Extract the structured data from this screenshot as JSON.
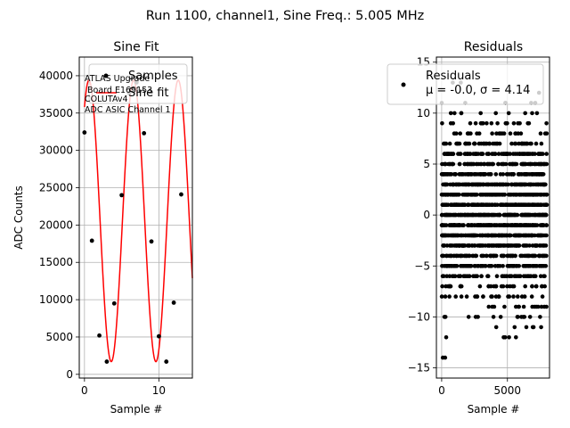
{
  "figure": {
    "suptitle": "Run 1100, channel1, Sine Freq.: 5.005 MHz"
  },
  "chart_data": [
    {
      "type": "scatter",
      "title": "Sine Fit",
      "xlabel": "Sample #",
      "ylabel": "ADC Counts",
      "xlim": [
        -0.7,
        14.5
      ],
      "ylim": [
        -500,
        42500
      ],
      "xticks": [
        0,
        10
      ],
      "xtick_labels": [
        "0",
        "10"
      ],
      "yticks": [
        0,
        5000,
        10000,
        15000,
        20000,
        25000,
        30000,
        35000,
        40000
      ],
      "ytick_labels": [
        "0",
        "5000",
        "10000",
        "15000",
        "20000",
        "25000",
        "30000",
        "35000",
        "40000"
      ],
      "grid": true,
      "legend_position": "top-right",
      "annotation_lines": [
        "ATLAS Upgrade",
        "Board E169153",
        "COLUTAv4",
        "ADC ASIC Channel 1"
      ],
      "series": [
        {
          "name": "Samples",
          "kind": "scatter",
          "color": "#000000",
          "x": [
            0,
            1,
            2,
            3,
            4,
            5,
            6,
            7,
            8,
            9,
            10,
            11,
            12,
            13
          ],
          "y": [
            32400,
            17900,
            5200,
            1700,
            9500,
            24000,
            37700,
            39100,
            32300,
            17800,
            5100,
            1700,
            9600,
            24100
          ]
        },
        {
          "name": "Sine fit",
          "kind": "line",
          "color": "#ff0000",
          "fit": {
            "amplitude": 18850,
            "offset": 20550,
            "period": 6.0,
            "peak_at": 6.6
          },
          "x_range": [
            0,
            14.5
          ]
        }
      ]
    },
    {
      "type": "scatter",
      "title": "Residuals",
      "xlabel": "Sample #",
      "ylabel": "",
      "xlim": [
        -400,
        8200
      ],
      "ylim": [
        -16,
        15.5
      ],
      "xticks": [
        0,
        5000
      ],
      "xtick_labels": [
        "0",
        "5000"
      ],
      "yticks": [
        -15,
        -10,
        -5,
        0,
        5,
        10,
        15
      ],
      "ytick_labels": [
        "−15",
        "−10",
        "−5",
        "0",
        "5",
        "10",
        "15"
      ],
      "grid": true,
      "legend_position": "top-right",
      "series": [
        {
          "name": "Residuals",
          "legend_stat": "μ = -0.0, σ = 4.14",
          "kind": "scatter",
          "color": "#000000",
          "sample_count": 8000,
          "mean": 0.0,
          "sigma": 4.14
        }
      ]
    }
  ]
}
